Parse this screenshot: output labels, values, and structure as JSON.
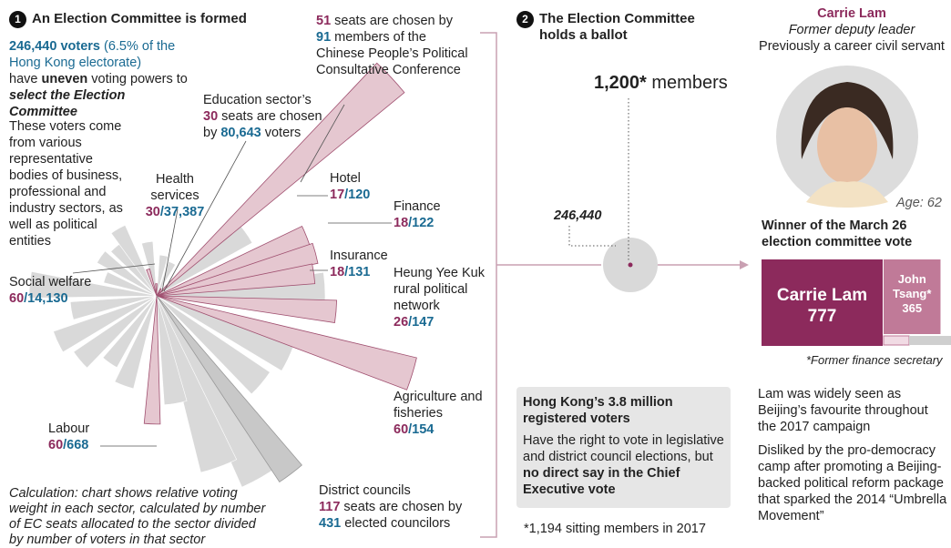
{
  "step1": {
    "number": "1",
    "title": "An Election Committee is formed"
  },
  "intro": {
    "voters": "246,440 voters",
    "share": " (6.5% of the Hong Kong electorate)",
    "have": "have ",
    "uneven": "uneven",
    "powers": " voting powers to",
    "select": "select the Election Committee"
  },
  "bodies_text": "These voters come from various representative bodies of business, professional and industry sectors, as well as political entities",
  "separator": "/",
  "sectors": [
    {
      "format": "sentence",
      "seats": 51,
      "seats_text": " seats are chosen by",
      "voters": 91,
      "voters_text": " members of the Chinese People’s Political Consultative Conference"
    },
    {
      "format": "sentence",
      "name": "Education sector’s",
      "seats": 30,
      "seats_text": " seats are chosen",
      "voters_prefix": "by ",
      "voters": {
        "value": 80643,
        "label": "80,643"
      },
      "voters_text": " voters"
    },
    {
      "format": "ratio",
      "name": "Health services",
      "seats": 30,
      "voters": {
        "value": 37387,
        "label": "37,387"
      }
    },
    {
      "format": "ratio",
      "name": "Social welfare",
      "seats": 60,
      "voters": {
        "value": 14130,
        "label": "14,130"
      }
    },
    {
      "format": "ratio",
      "name": "Labour",
      "seats": 60,
      "voters": 668
    },
    {
      "format": "ratio",
      "name": "Hotel",
      "seats": 17,
      "voters": 120
    },
    {
      "format": "ratio",
      "name": "Finance",
      "seats": 18,
      "voters": 122
    },
    {
      "format": "ratio",
      "name": "Insurance",
      "seats": 18,
      "voters": 131
    },
    {
      "format": "ratio",
      "name": "Heung Yee Kuk rural political network",
      "seats": 26,
      "voters": 147
    },
    {
      "format": "ratio",
      "name": "Agriculture and fisheries",
      "seats": 60,
      "voters": 154
    },
    {
      "format": "sentence",
      "name": "District councils",
      "seats": 117,
      "seats_text": " seats are chosen by",
      "voters": 431,
      "voters_text": " elected councilors"
    }
  ],
  "calculation": "Calculation: chart shows relative voting weight in each sector, calculated by number of EC seats allocated to the sector divided by number of voters in that sector",
  "step2": {
    "number": "2",
    "title": "The Election Committee holds a ballot"
  },
  "ballot": {
    "total": "1,200*",
    "members": " members",
    "voters": "246,440"
  },
  "box": {
    "title": "Hong Kong’s 3.8 million registered voters",
    "text": "Have the right to vote in legislative and district council elections, but ",
    "bold": "no direct say in the Chief Executive vote"
  },
  "footnote": "*1,194 sitting members in 2017",
  "profile": {
    "name": "Carrie Lam",
    "role": "Former deputy leader",
    "previous": "Previously a career civil servant",
    "age": "Age: 62"
  },
  "winner_title": "Winner of the March 26 election committee vote",
  "candidates": [
    {
      "name": "Carrie Lam",
      "votes": 777
    },
    {
      "name": "John Tsang*",
      "votes": 365
    }
  ],
  "tsang_note": "*Former finance secretary",
  "paragraphs": [
    "Lam was widely seen as Beijing’s favourite throughout the 2017 campaign",
    "Disliked by the pro-democracy camp after promoting a Beijing-backed political reform package that sparked the 2014 “Umbrella Movement”"
  ]
}
